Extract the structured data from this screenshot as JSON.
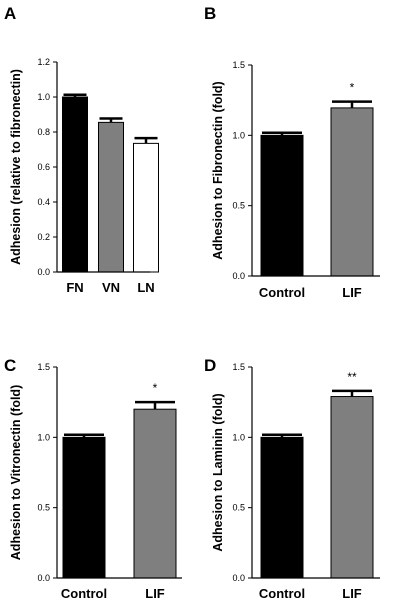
{
  "chart_data": [
    {
      "id": "A",
      "panel_label": "A",
      "type": "bar",
      "categories": [
        "FN",
        "VN",
        "LN"
      ],
      "values": [
        1.0,
        0.855,
        0.735
      ],
      "errors": [
        0.013,
        0.022,
        0.03
      ],
      "colors": [
        "#000000",
        "#7f7f7f",
        "#ffffff"
      ],
      "ylabel": "Adhesion  (relative to fibronectin)",
      "ylim": [
        0,
        1.2
      ],
      "yticks": [
        0.0,
        0.2,
        0.4,
        0.6,
        0.8,
        1.0,
        1.2
      ],
      "ytick_labels": [
        "0.0",
        "0.2",
        "0.4",
        "0.6",
        "0.8",
        "1.0",
        "1.2"
      ],
      "significance": [
        "",
        "",
        ""
      ]
    },
    {
      "id": "B",
      "panel_label": "B",
      "type": "bar",
      "categories": [
        "Control",
        "LIF"
      ],
      "values": [
        1.0,
        1.195
      ],
      "errors": [
        0.018,
        0.045
      ],
      "colors": [
        "#000000",
        "#7f7f7f"
      ],
      "ylabel": "Adhesion to Fibronectin (fold)",
      "ylim": [
        0,
        1.5
      ],
      "yticks": [
        0.0,
        0.5,
        1.0,
        1.5
      ],
      "ytick_labels": [
        "0.0",
        "0.5",
        "1.0",
        "1.5"
      ],
      "significance": [
        "",
        "*"
      ]
    },
    {
      "id": "C",
      "panel_label": "C",
      "type": "bar",
      "categories": [
        "Control",
        "LIF"
      ],
      "values": [
        1.0,
        1.2
      ],
      "errors": [
        0.018,
        0.05
      ],
      "colors": [
        "#000000",
        "#7f7f7f"
      ],
      "ylabel": "Adhesion to Vitronectin (fold)",
      "ylim": [
        0,
        1.5
      ],
      "yticks": [
        0.0,
        0.5,
        1.0,
        1.5
      ],
      "ytick_labels": [
        "0.0",
        "0.5",
        "1.0",
        "1.5"
      ],
      "significance": [
        "",
        "*"
      ]
    },
    {
      "id": "D",
      "panel_label": "D",
      "type": "bar",
      "categories": [
        "Control",
        "LIF"
      ],
      "values": [
        1.0,
        1.29
      ],
      "errors": [
        0.018,
        0.04
      ],
      "colors": [
        "#000000",
        "#7f7f7f"
      ],
      "ylabel": "Adhesion to Laminin (fold)",
      "ylim": [
        0,
        1.5
      ],
      "yticks": [
        0.0,
        0.5,
        1.0,
        1.5
      ],
      "ytick_labels": [
        "0.0",
        "0.5",
        "1.0",
        "1.5"
      ],
      "significance": [
        "",
        "**"
      ]
    }
  ]
}
